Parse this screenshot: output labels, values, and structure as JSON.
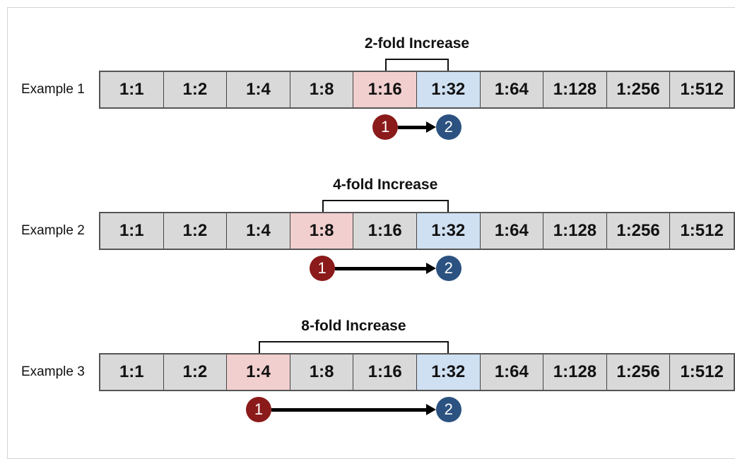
{
  "colors": {
    "cell_default": "#d9d9d9",
    "cell_start": "#f2cfcf",
    "cell_end": "#cfe0f2",
    "circle_start": "#8b1a1a",
    "circle_end": "#2b5280"
  },
  "dilutions": [
    "1:1",
    "1:2",
    "1:4",
    "1:8",
    "1:16",
    "1:32",
    "1:64",
    "1:128",
    "1:256",
    "1:512"
  ],
  "examples": [
    {
      "label": "Example 1",
      "fold_label": "2-fold Increase",
      "start_index": 4,
      "end_index": 5,
      "start_marker": "1",
      "end_marker": "2"
    },
    {
      "label": "Example 2",
      "fold_label": "4-fold Increase",
      "start_index": 3,
      "end_index": 5,
      "start_marker": "1",
      "end_marker": "2"
    },
    {
      "label": "Example 3",
      "fold_label": "8-fold Increase",
      "start_index": 2,
      "end_index": 5,
      "start_marker": "1",
      "end_marker": "2"
    }
  ]
}
